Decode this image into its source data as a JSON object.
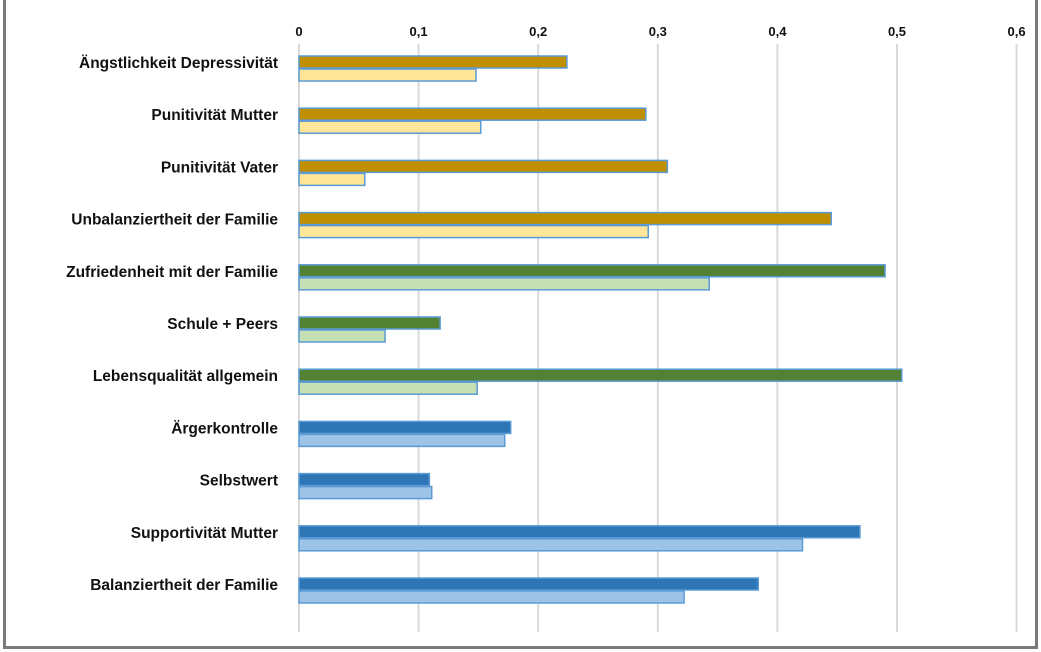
{
  "chart_data": {
    "type": "bar",
    "orientation": "horizontal",
    "title": "",
    "xlabel": "",
    "ylabel": "",
    "xlim": [
      0,
      0.6
    ],
    "x_ticks": [
      "0",
      "0,1",
      "0,2",
      "0,3",
      "0,4",
      "0,5",
      "0,6"
    ],
    "x_tick_values": [
      0,
      0.1,
      0.2,
      0.3,
      0.4,
      0.5,
      0.6
    ],
    "x_axis_position": "top",
    "grid": true,
    "legend": false,
    "categories": [
      "Ängstlichkeit Depressivität",
      "Punitivität Mutter",
      "Punitivität Vater",
      "Unbalanziertheit der Familie",
      "Zufriedenheit mit der Familie",
      "Schule + Peers",
      "Lebensqualität allgemein",
      "Ärgerkontrolle",
      "Selbstwert",
      "Supportivität Mutter",
      "Balanziertheit der Familie"
    ],
    "series": [
      {
        "values": [
          0.224,
          0.29,
          0.308,
          0.445,
          0.49,
          0.118,
          0.504,
          0.177,
          0.109,
          0.469,
          0.384
        ]
      },
      {
        "values": [
          0.148,
          0.152,
          0.055,
          0.292,
          0.343,
          0.072,
          0.149,
          0.172,
          0.111,
          0.421,
          0.322
        ]
      }
    ],
    "group_colors": [
      {
        "primary": "#bf8f00",
        "secondary": "#ffe699"
      },
      {
        "primary": "#548235",
        "secondary": "#c5e0b4"
      },
      {
        "primary": "#2e75b6",
        "secondary": "#9dc3e6"
      }
    ],
    "category_group": [
      0,
      0,
      0,
      0,
      1,
      1,
      1,
      2,
      2,
      2,
      2
    ],
    "bar_outline_color": "#5b9bd5",
    "gridline_color": "#d9d9d9"
  }
}
